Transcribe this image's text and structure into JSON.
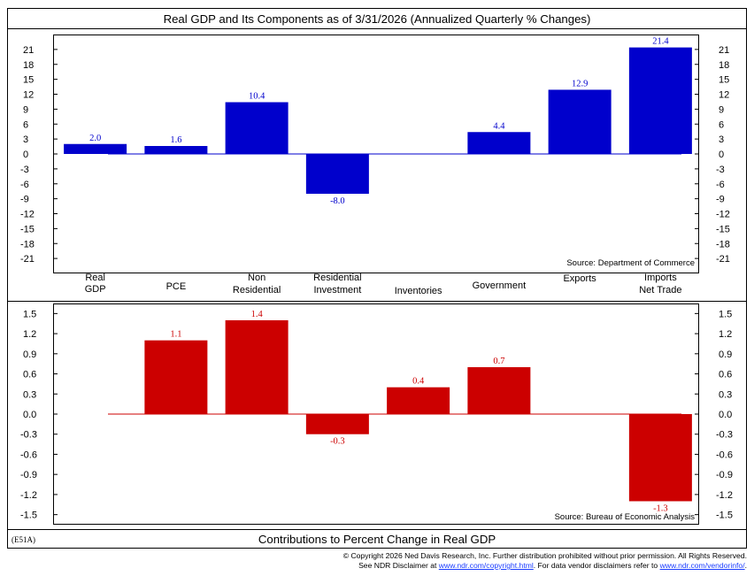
{
  "header": {
    "title": "Real GDP and Its Components as of 3/31/2026 (Annualized Quarterly % Changes)"
  },
  "middle_labels": [
    [
      "Real",
      "GDP"
    ],
    [
      "PCE"
    ],
    [
      "Non",
      "Residential"
    ],
    [
      "Residential",
      "Investment"
    ],
    [
      "Inventories"
    ],
    [
      "Government"
    ],
    [
      "Exports"
    ],
    [
      "Imports",
      "Net Trade"
    ]
  ],
  "chart_data": [
    {
      "type": "bar",
      "title": "Real GDP and Its Components as of 3/31/2026 (Annualized Quarterly % Changes)",
      "categories": [
        "Real GDP",
        "PCE",
        "Non Residential",
        "Residential Investment",
        "Inventories",
        "Government",
        "Exports",
        "Imports Net Trade"
      ],
      "values": [
        2.0,
        1.6,
        10.4,
        -8.0,
        null,
        4.4,
        12.9,
        21.4
      ],
      "labels": [
        "2.0",
        "1.6",
        "10.4",
        "-8.0",
        "",
        "4.4",
        "12.9",
        "21.4"
      ],
      "ylim": [
        -24,
        24
      ],
      "yticks": [
        "21",
        "18",
        "15",
        "12",
        "9",
        "6",
        "3",
        "0",
        "-3",
        "-6",
        "-9",
        "-12",
        "-15",
        "-18",
        "-21"
      ],
      "yticks_values": [
        21,
        18,
        15,
        12,
        9,
        6,
        3,
        0,
        -3,
        -6,
        -9,
        -12,
        -15,
        -18,
        -21
      ],
      "color": "#0000cc",
      "source": "Source: Department of Commerce"
    },
    {
      "type": "bar",
      "title": "Contributions to Percent Change in Real GDP",
      "categories": [
        "Real GDP",
        "PCE",
        "Non Residential",
        "Residential Investment",
        "Inventories",
        "Government",
        "Exports",
        "Imports Net Trade"
      ],
      "values": [
        null,
        1.1,
        1.4,
        -0.3,
        0.4,
        0.7,
        null,
        -1.3
      ],
      "labels": [
        "",
        "1.1",
        "1.4",
        "-0.3",
        "0.4",
        "0.7",
        "",
        "-1.3"
      ],
      "ylim": [
        -1.65,
        1.65
      ],
      "yticks": [
        "1.5",
        "1.2",
        "0.9",
        "0.6",
        "0.3",
        "0.0",
        "-0.3",
        "-0.6",
        "-0.9",
        "-1.2",
        "-1.5"
      ],
      "yticks_values": [
        1.5,
        1.2,
        0.9,
        0.6,
        0.3,
        0.0,
        -0.3,
        -0.6,
        -0.9,
        -1.2,
        -1.5
      ],
      "color": "#cc0000",
      "source": "Source: Bureau of Economic Analysis"
    }
  ],
  "footer": {
    "code": "(E51A)",
    "bottom_title": "Contributions to Percent Change in Real GDP",
    "copyright": "© Copyright 2026 Ned Davis Research, Inc. Further distribution prohibited without prior permission. All Rights Reserved.",
    "disclaimer_prefix": "See NDR Disclaimer at ",
    "disclaimer_link1": "www.ndr.com/copyright.html",
    "disclaimer_middle": ". For data vendor disclaimers refer to ",
    "disclaimer_link2": "www.ndr.com/vendorinfo/",
    "disclaimer_suffix": "."
  }
}
